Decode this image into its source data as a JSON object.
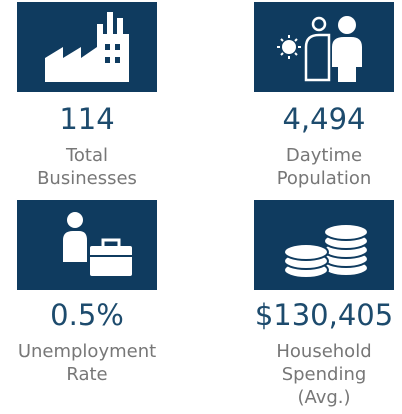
{
  "tiles": [
    {
      "value": "114",
      "label": [
        "Total",
        "Businesses"
      ]
    },
    {
      "value": "4,494",
      "label": [
        "Daytime",
        "Population"
      ]
    },
    {
      "value": "0.5%",
      "label": [
        "Unemployment",
        "Rate"
      ]
    },
    {
      "value": "$130,405",
      "label": [
        "Household",
        "Spending",
        "(Avg.)"
      ]
    }
  ]
}
